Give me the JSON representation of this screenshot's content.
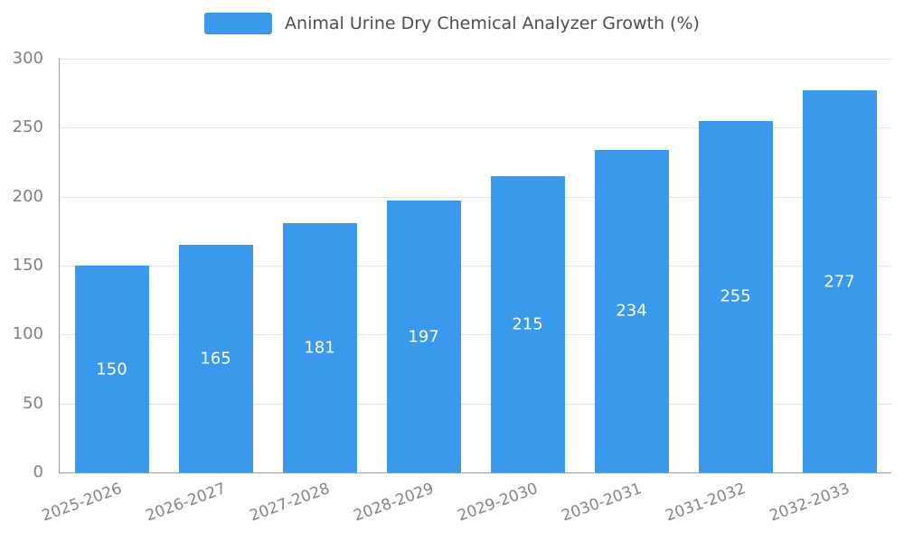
{
  "chart_data": {
    "type": "bar",
    "title": "Animal Urine Dry Chemical Analyzer Growth (%)",
    "categories": [
      "2025-2026",
      "2026-2027",
      "2027-2028",
      "2028-2029",
      "2029-2030",
      "2030-2031",
      "2031-2032",
      "2032-2033"
    ],
    "values": [
      150,
      165,
      181,
      197,
      215,
      234,
      255,
      277
    ],
    "xlabel": "",
    "ylabel": "",
    "ylim": [
      0,
      300
    ],
    "yticks": [
      0,
      50,
      100,
      150,
      200,
      250,
      300
    ],
    "grid": true,
    "legend_position": "top",
    "bar_color": "#3a99ec",
    "value_label_color": "#ffffff",
    "axis_text_color": "#808080"
  },
  "legend": {
    "label": "Animal Urine Dry Chemical Analyzer Growth (%)"
  }
}
